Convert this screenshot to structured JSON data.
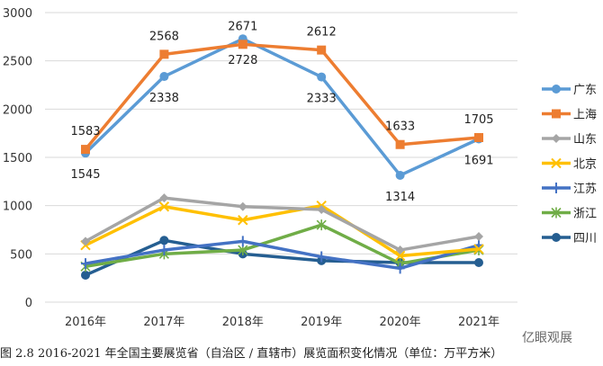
{
  "chart_data": {
    "type": "line",
    "categories": [
      "2016年",
      "2017年",
      "2018年",
      "2019年",
      "2020年",
      "2021年"
    ],
    "ylim": [
      0,
      3000
    ],
    "yticks": [
      0,
      500,
      1000,
      1500,
      2000,
      2500,
      3000
    ],
    "grid": true,
    "legend": "right",
    "series": [
      {
        "name": "广东",
        "color": "#5B9BD5",
        "marker": "circle",
        "values": [
          1545,
          2338,
          2728,
          2333,
          1314,
          1691
        ],
        "labels": true,
        "label_pos": "below"
      },
      {
        "name": "上海",
        "color": "#ED7D31",
        "marker": "square",
        "values": [
          1583,
          2568,
          2671,
          2612,
          1633,
          1705
        ],
        "labels": true,
        "label_pos": "above"
      },
      {
        "name": "山东",
        "color": "#A5A5A5",
        "marker": "diamond",
        "values": [
          630,
          1080,
          990,
          960,
          540,
          680
        ]
      },
      {
        "name": "北京",
        "color": "#FFC000",
        "marker": "x",
        "values": [
          590,
          990,
          850,
          1000,
          480,
          550
        ]
      },
      {
        "name": "江苏",
        "color": "#4472C4",
        "marker": "plus",
        "values": [
          400,
          540,
          630,
          470,
          350,
          590
        ]
      },
      {
        "name": "浙江",
        "color": "#70AD47",
        "marker": "star",
        "values": [
          370,
          500,
          540,
          800,
          400,
          540
        ]
      },
      {
        "name": "四川",
        "color": "#255E91",
        "marker": "circle",
        "values": [
          280,
          640,
          500,
          430,
          410,
          410
        ]
      }
    ]
  },
  "caption": "图 2.8  2016-2021 年全国主要展览省（自治区 / 直辖市）展览面积变化情况（单位：万平方米）",
  "watermark": "亿眼观展"
}
